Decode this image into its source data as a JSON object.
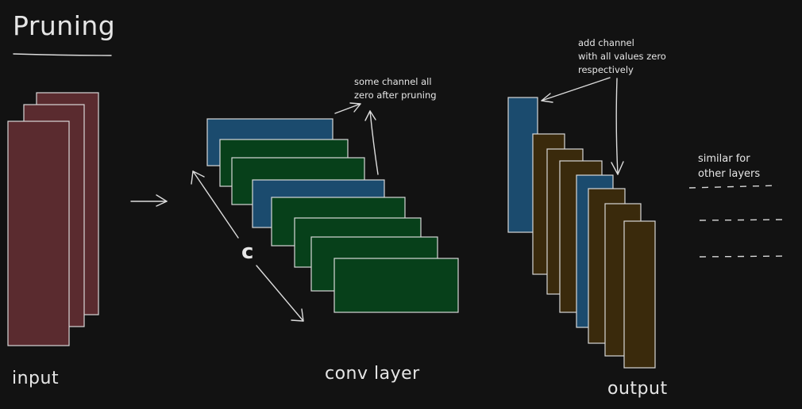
{
  "title": "Pruning",
  "labels": {
    "input": "input",
    "conv_layer": "conv layer",
    "output": "output",
    "channel_axis": "c"
  },
  "notes": {
    "zero_after_pruning": [
      "some channel all",
      "zero after pruning"
    ],
    "add_channel": [
      "add channel",
      "with all values zero",
      "respectively"
    ],
    "similar": [
      "similar for",
      "other layers"
    ]
  },
  "colors": {
    "background": "#121212",
    "input_fill": "#5a2b2f",
    "pruned_fill": "#1b4b6e",
    "conv_fill": "#07401a",
    "output_fill": "#3a2a0c",
    "stroke": "#d8d8d8",
    "text": "#e6e6e6"
  },
  "conv_channels": [
    "pruned",
    "kept",
    "kept",
    "pruned",
    "kept",
    "kept",
    "kept",
    "kept"
  ],
  "output_channels": [
    "pruned",
    "kept",
    "kept",
    "kept",
    "pruned",
    "kept",
    "kept"
  ],
  "input_channels": 3
}
